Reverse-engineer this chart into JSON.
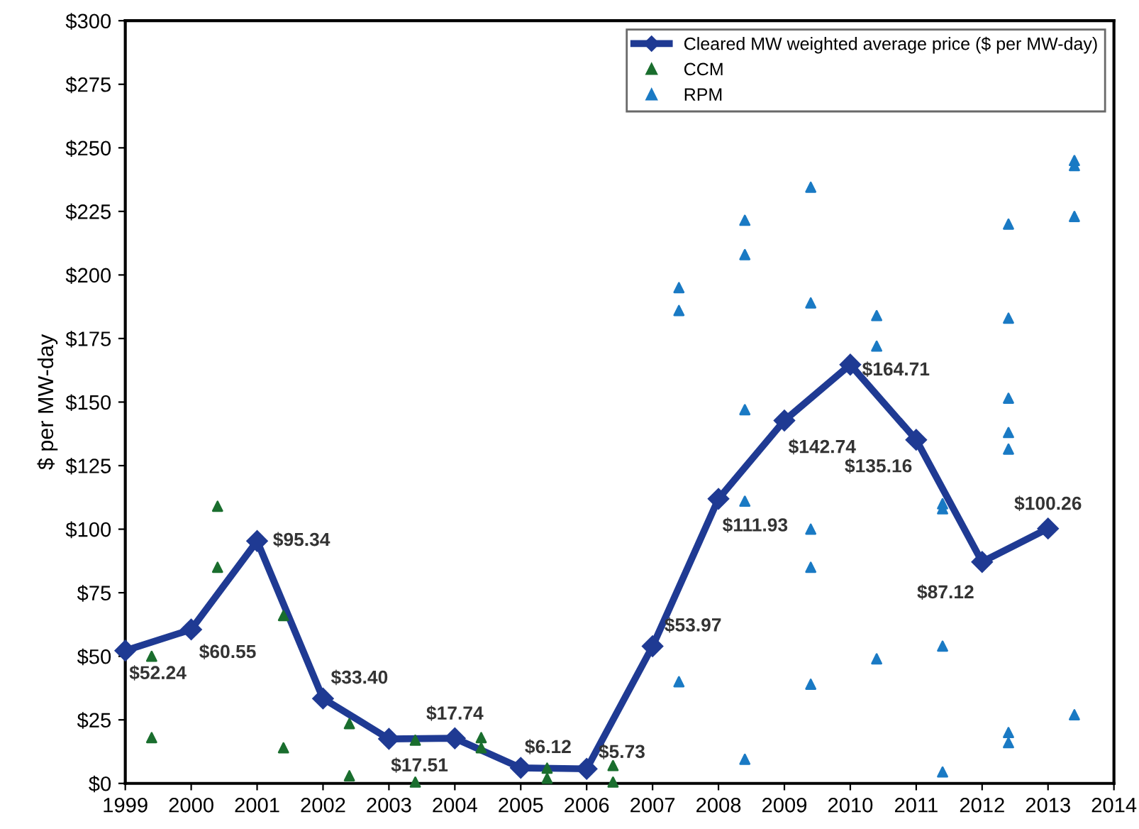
{
  "chart_data": {
    "type": "line",
    "ylabel": "$ per MW-day",
    "xlim": [
      1999,
      2014
    ],
    "xticks": [
      1999,
      2000,
      2001,
      2002,
      2003,
      2004,
      2005,
      2006,
      2007,
      2008,
      2009,
      2010,
      2011,
      2012,
      2013,
      2014
    ],
    "ylim": [
      0,
      300
    ],
    "yticks": [
      {
        "value": 0,
        "label": "$0"
      },
      {
        "value": 25,
        "label": "$25"
      },
      {
        "value": 50,
        "label": "$50"
      },
      {
        "value": 75,
        "label": "$75"
      },
      {
        "value": 100,
        "label": "$100"
      },
      {
        "value": 125,
        "label": "$125"
      },
      {
        "value": 150,
        "label": "$150"
      },
      {
        "value": 175,
        "label": "$175"
      },
      {
        "value": 200,
        "label": "$200"
      },
      {
        "value": 225,
        "label": "$225"
      },
      {
        "value": 250,
        "label": "$250"
      },
      {
        "value": 275,
        "label": "$275"
      },
      {
        "value": 300,
        "label": "$300"
      }
    ],
    "grid": false,
    "legend": "top right",
    "series": [
      {
        "name": "Cleared MW weighted average price ($ per MW-day)",
        "color": "#1f3a93",
        "marker": "diamond",
        "line_style": "solid",
        "x": [
          1999,
          2000,
          2001,
          2002,
          2003,
          2004,
          2005,
          2006,
          2007,
          2008,
          2009,
          2010,
          2011,
          2012,
          2013
        ],
        "values": [
          52.24,
          60.55,
          95.34,
          33.4,
          17.51,
          17.74,
          6.12,
          5.73,
          53.97,
          111.93,
          142.74,
          164.71,
          135.16,
          87.12,
          100.26
        ],
        "value_labels": [
          "$52.24",
          "$60.55",
          "$95.34",
          "$33.40",
          "$17.51",
          "$17.74",
          "$6.12",
          "$5.73",
          "$53.97",
          "$111.93",
          "$142.74",
          "$164.71",
          "$135.16",
          "$87.12",
          "$100.26"
        ]
      },
      {
        "name": "CCM",
        "type": "scatter",
        "color": "#1a6e2e",
        "marker": "triangle",
        "x": [
          1999.4,
          1999.4,
          2000.4,
          2000.4,
          2001.4,
          2001.4,
          2002.4,
          2002.4,
          2003.4,
          2003.4,
          2004.4,
          2004.4,
          2005.4,
          2005.4,
          2006.4,
          2006.4
        ],
        "values": [
          50,
          18,
          109,
          85,
          66,
          14,
          23.5,
          3,
          17,
          0.5,
          18,
          14,
          6,
          2,
          7,
          0.5
        ]
      },
      {
        "name": "RPM",
        "type": "scatter",
        "color": "#1a7ac4",
        "marker": "triangle",
        "x": [
          2007.4,
          2007.4,
          2007.4,
          2008.4,
          2008.4,
          2008.4,
          2008.4,
          2008.4,
          2009.4,
          2009.4,
          2009.4,
          2009.4,
          2009.4,
          2010.4,
          2010.4,
          2010.4,
          2011.4,
          2011.4,
          2011.4,
          2011.4,
          2012.4,
          2012.4,
          2012.4,
          2012.4,
          2012.4,
          2012.4,
          2012.4,
          2013.4,
          2013.4,
          2013.4,
          2013.4
        ],
        "values": [
          195,
          186,
          40,
          221.5,
          208,
          147,
          111,
          9.5,
          234.5,
          189,
          100,
          85,
          39,
          184,
          172,
          49,
          110,
          108,
          54,
          4.5,
          220,
          183,
          151.5,
          138,
          131.5,
          20,
          16,
          245,
          243,
          223,
          27
        ]
      }
    ]
  }
}
